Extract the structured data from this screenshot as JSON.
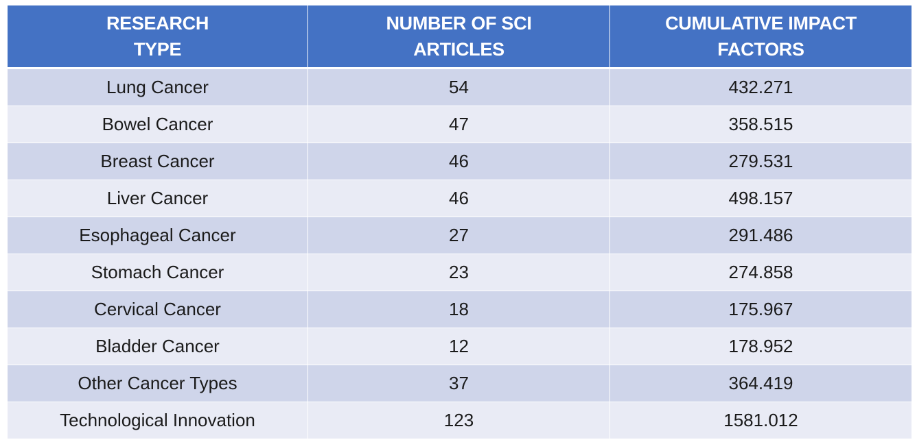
{
  "table": {
    "headers": [
      {
        "line1": "RESEARCH",
        "line2": "TYPE"
      },
      {
        "line1": "NUMBER OF SCI",
        "line2": "ARTICLES"
      },
      {
        "line1": "CUMULATIVE IMPACT",
        "line2": "FACTORS"
      }
    ],
    "rows": [
      {
        "type": "Lung Cancer",
        "articles": "54",
        "impact": "432.271"
      },
      {
        "type": "Bowel Cancer",
        "articles": "47",
        "impact": "358.515"
      },
      {
        "type": "Breast Cancer",
        "articles": "46",
        "impact": "279.531"
      },
      {
        "type": "Liver Cancer",
        "articles": "46",
        "impact": "498.157"
      },
      {
        "type": "Esophageal Cancer",
        "articles": "27",
        "impact": "291.486"
      },
      {
        "type": "Stomach Cancer",
        "articles": "23",
        "impact": "274.858"
      },
      {
        "type": "Cervical Cancer",
        "articles": "18",
        "impact": "175.967"
      },
      {
        "type": "Bladder Cancer",
        "articles": "12",
        "impact": "178.952"
      },
      {
        "type": "Other Cancer Types",
        "articles": "37",
        "impact": "364.419"
      },
      {
        "type": "Technological Innovation",
        "articles": "123",
        "impact": "1581.012"
      }
    ]
  },
  "colors": {
    "header_bg": "#4472c4",
    "header_text": "#ffffff",
    "row_odd": "#cfd5ea",
    "row_even": "#e9ebf5"
  }
}
